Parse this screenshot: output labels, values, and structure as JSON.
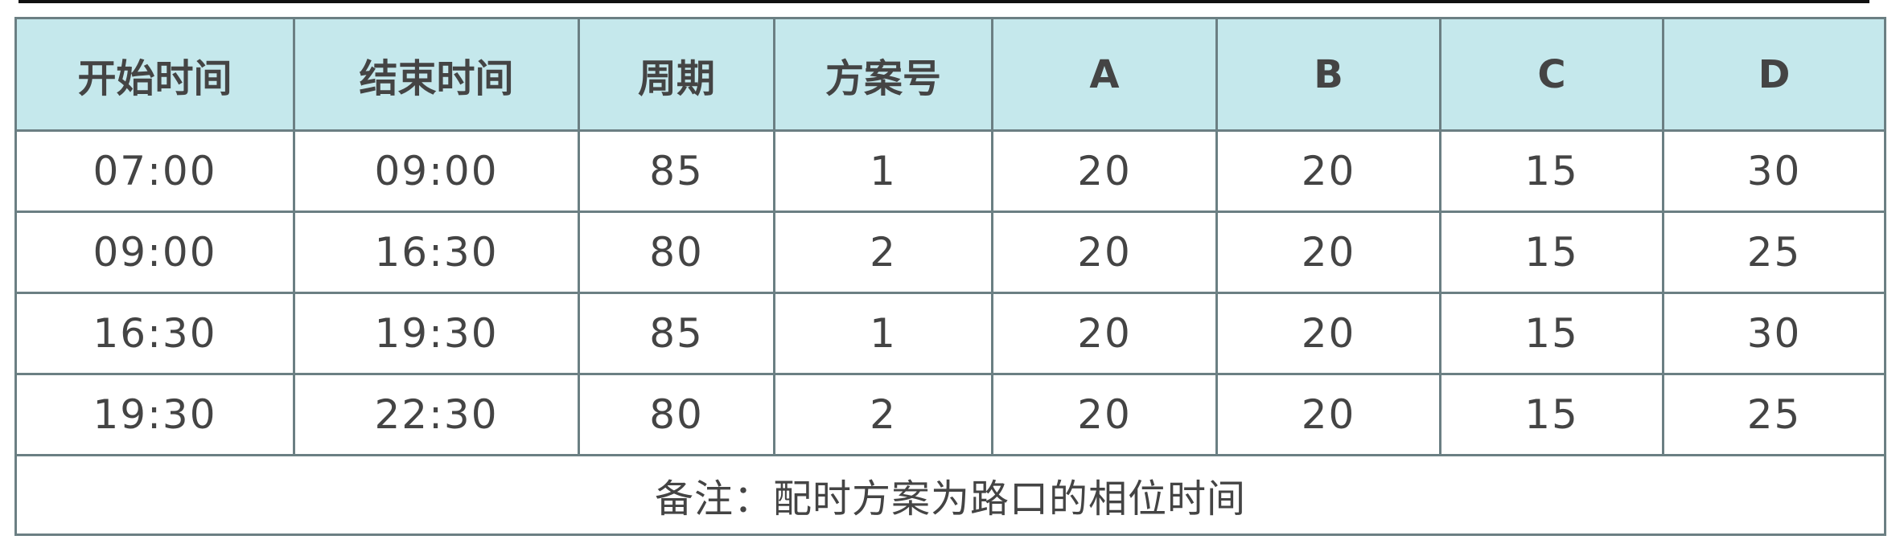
{
  "table": {
    "headers": [
      "开始时间",
      "结束时间",
      "周期",
      "方案号",
      "A",
      "B",
      "C",
      "D"
    ],
    "rows": [
      [
        "07:00",
        "09:00",
        "85",
        "1",
        "20",
        "20",
        "15",
        "30"
      ],
      [
        "09:00",
        "16:30",
        "80",
        "2",
        "20",
        "20",
        "15",
        "25"
      ],
      [
        "16:30",
        "19:30",
        "85",
        "1",
        "20",
        "20",
        "15",
        "30"
      ],
      [
        "19:30",
        "22:30",
        "80",
        "2",
        "20",
        "20",
        "15",
        "25"
      ]
    ],
    "note": "备注：配时方案为路口的相位时间"
  },
  "colors": {
    "header_bg": "#c5e8ec",
    "border": "#6b7f83",
    "text": "#444444"
  }
}
